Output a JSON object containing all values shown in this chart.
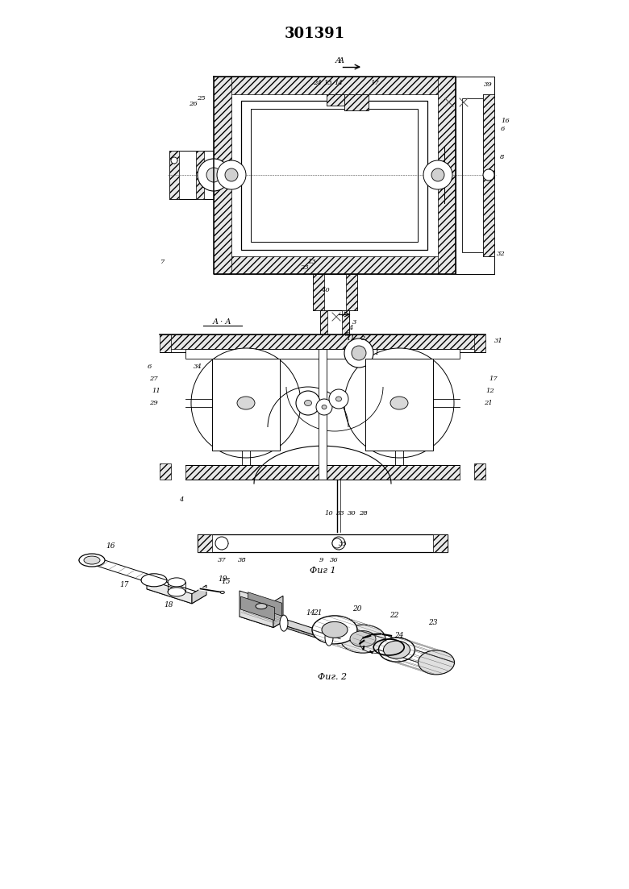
{
  "title": "301391",
  "title_fontsize": 13,
  "fig_width": 7.8,
  "fig_height": 11.03,
  "dpi": 100,
  "background_color": "#ffffff",
  "line_color": "#000000",
  "fig1_caption": "Фиг 1",
  "fig2_caption": "Фиг. 2",
  "section_label": "A · A"
}
